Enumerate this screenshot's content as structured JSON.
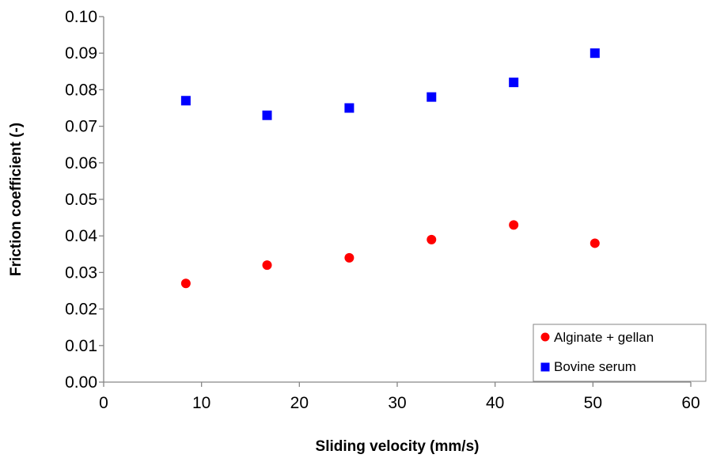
{
  "chart_data": {
    "type": "scatter",
    "title": "",
    "xlabel": "Sliding velocity (mm/s)",
    "ylabel": "Friction coefficient (-)",
    "xlim": [
      0,
      60
    ],
    "ylim": [
      0,
      0.1
    ],
    "xticks": [
      0,
      10,
      20,
      30,
      40,
      50,
      60
    ],
    "xtick_labels": [
      "0",
      "10",
      "20",
      "30",
      "40",
      "50",
      "60"
    ],
    "yticks": [
      0,
      0.01,
      0.02,
      0.03,
      0.04,
      0.05,
      0.06,
      0.07,
      0.08,
      0.09,
      0.1
    ],
    "ytick_labels": [
      "0.00",
      "0.01",
      "0.02",
      "0.03",
      "0.04",
      "0.05",
      "0.06",
      "0.07",
      "0.08",
      "0.09",
      "0.10"
    ],
    "grid": false,
    "legend_position": "bottom-right",
    "series": [
      {
        "name": "Alginate + gellan",
        "marker": "circle",
        "color": "#ff0000",
        "x": [
          8.4,
          16.7,
          25.1,
          33.5,
          41.9,
          50.2
        ],
        "y": [
          0.027,
          0.032,
          0.034,
          0.039,
          0.043,
          0.038
        ]
      },
      {
        "name": "Bovine serum",
        "marker": "square",
        "color": "#0000ff",
        "x": [
          8.4,
          16.7,
          25.1,
          33.5,
          41.9,
          50.2
        ],
        "y": [
          0.077,
          0.073,
          0.075,
          0.078,
          0.082,
          0.09
        ]
      }
    ]
  }
}
